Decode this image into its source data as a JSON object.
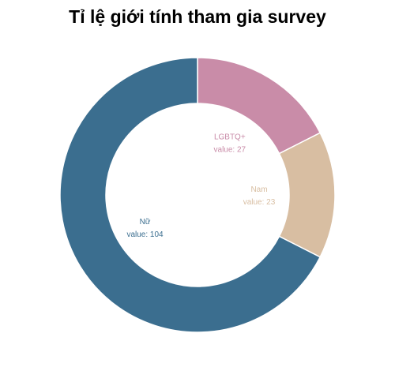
{
  "chart_data": {
    "type": "pie",
    "donut": true,
    "title": "Tỉ lệ giới tính tham gia survey",
    "value_prefix": "value: ",
    "slices": [
      {
        "label": "LGBTQ+",
        "value": 27,
        "color": "#c98ca8"
      },
      {
        "label": "Nam",
        "value": 23,
        "color": "#d8bea2"
      },
      {
        "label": "Nữ",
        "value": 104,
        "color": "#3b6e8f"
      }
    ],
    "background": "#ffffff",
    "legend": "none"
  }
}
